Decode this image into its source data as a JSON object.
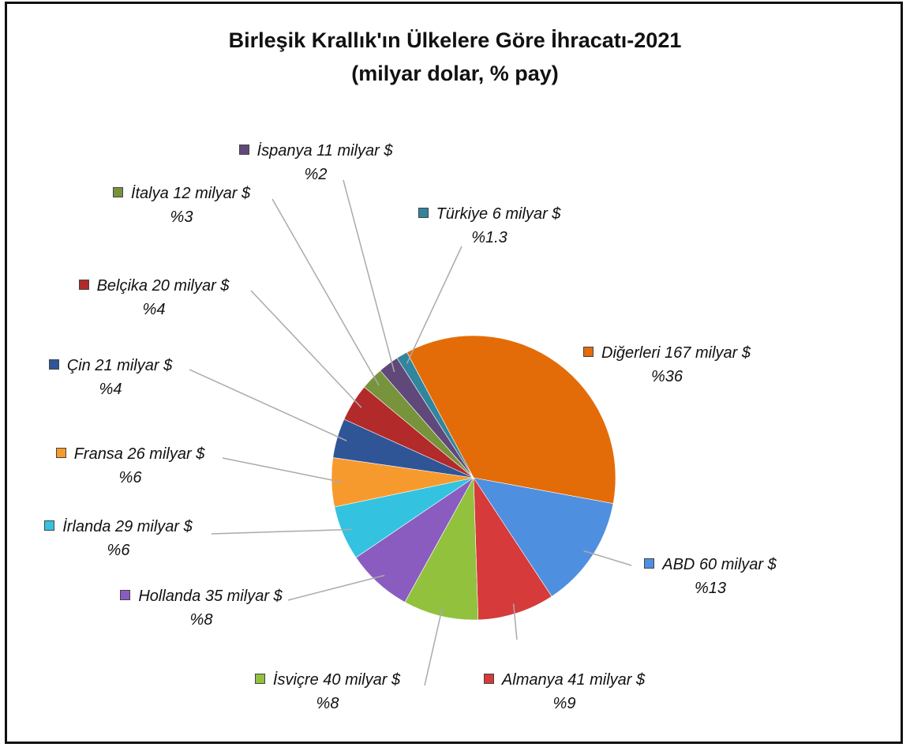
{
  "chart_data": {
    "type": "pie",
    "title": "Birleşik Krallık'ın Ülkelere Göre İhracatı-2021",
    "subtitle": "(milyar dolar, % pay)",
    "categories": [
      "Diğerleri",
      "ABD",
      "Almanya",
      "İsviçre",
      "Hollanda",
      "İrlanda",
      "Fransa",
      "Çin",
      "Belçika",
      "İtalya",
      "İspanya",
      "Türkiye"
    ],
    "values": [
      167,
      60,
      41,
      40,
      35,
      29,
      26,
      21,
      20,
      12,
      11,
      6
    ],
    "value_labels": [
      "167 milyar $",
      "60 milyar $",
      "41 milyar $",
      "40 milyar $",
      "35 milyar $",
      "29 milyar $",
      "26 milyar $",
      "21 milyar $",
      "20 milyar $",
      "12 milyar $",
      "11 milyar $",
      "6 milyar $"
    ],
    "percents": [
      36,
      13,
      9,
      8,
      8,
      6,
      6,
      4,
      4,
      3,
      2,
      1.3
    ],
    "percent_labels": [
      "%36",
      "%13",
      "%9",
      "%8",
      "%8",
      "%6",
      "%6",
      "%4",
      "%4",
      "%3",
      "%2",
      "%1.3"
    ],
    "colors": [
      "#e36c09",
      "#4f8fe0",
      "#d63a3a",
      "#92c13e",
      "#8a5cc0",
      "#33c3e0",
      "#f79a2e",
      "#2f5597",
      "#b22a2a",
      "#77933c",
      "#60497a",
      "#31859c"
    ]
  }
}
